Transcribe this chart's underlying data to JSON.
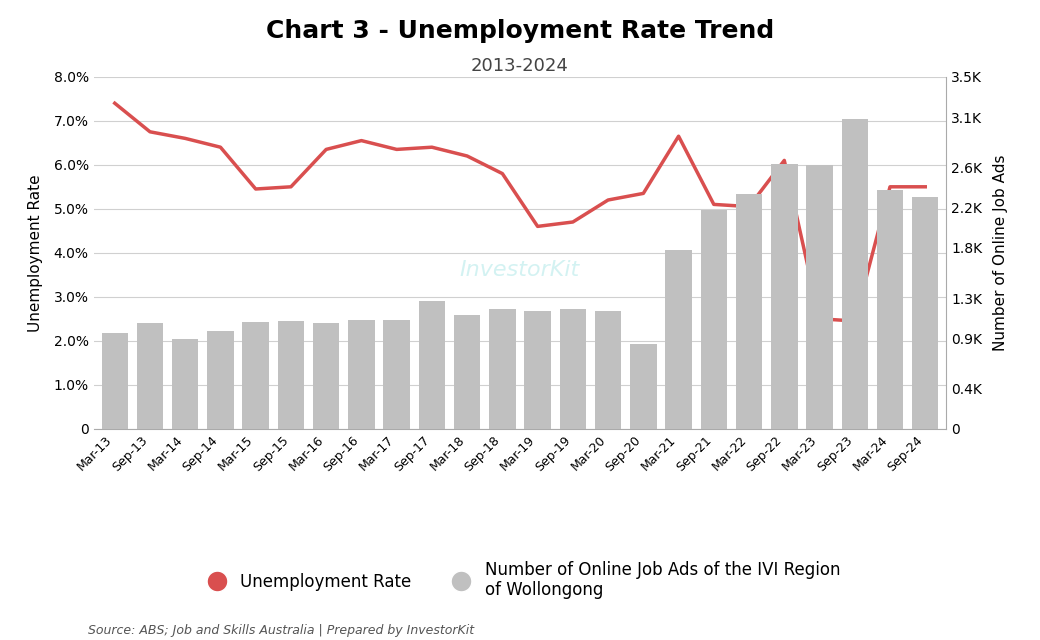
{
  "title": "Chart 3 - Unemployment Rate Trend",
  "subtitle": "2013-2024",
  "source_text": "Source: ABS; Job and Skills Australia | Prepared by InvestorKit",
  "ylabel_left": "Unemployment Rate",
  "ylabel_right": "Number of Online Job Ads",
  "watermark": "InvestorKit",
  "x_labels": [
    "Mar-13",
    "Sep-13",
    "Mar-14",
    "Sep-14",
    "Mar-15",
    "Sep-15",
    "Mar-16",
    "Sep-16",
    "Mar-17",
    "Sep-17",
    "Mar-18",
    "Sep-18",
    "Mar-19",
    "Sep-19",
    "Mar-20",
    "Sep-20",
    "Mar-21",
    "Sep-21",
    "Mar-22",
    "Sep-22",
    "Mar-23",
    "Sep-23",
    "Mar-24",
    "Sep-24"
  ],
  "unemployment_rate": [
    7.4,
    6.75,
    6.6,
    6.4,
    5.45,
    5.5,
    6.35,
    6.55,
    6.35,
    6.4,
    6.2,
    5.8,
    4.6,
    4.7,
    5.2,
    5.35,
    6.65,
    5.1,
    5.05,
    6.1,
    2.5,
    2.45,
    5.5,
    5.5
  ],
  "job_ads": [
    950,
    1050,
    890,
    970,
    1060,
    1070,
    1050,
    1080,
    1080,
    1270,
    1130,
    1190,
    1170,
    1190,
    1175,
    840,
    1780,
    2180,
    2330,
    2630,
    2620,
    3080,
    2370,
    2300
  ],
  "unemployment_color": "#d94f4f",
  "bar_color": "#c0c0c0",
  "background_color": "#ffffff",
  "grid_color": "#d0d0d0",
  "ylim_left": [
    0,
    8.0
  ],
  "ylim_right": [
    0,
    3500
  ],
  "yticks_left": [
    0,
    1.0,
    2.0,
    3.0,
    4.0,
    5.0,
    6.0,
    7.0,
    8.0
  ],
  "ytick_labels_left": [
    "0",
    "1.0%",
    "2.0%",
    "3.0%",
    "4.0%",
    "5.0%",
    "6.0%",
    "7.0%",
    "8.0%"
  ],
  "yticks_right": [
    0,
    400,
    900,
    1300,
    1800,
    2200,
    2600,
    3100,
    3500
  ],
  "ytick_labels_right": [
    "0",
    "0.4K",
    "0.9K",
    "1.3K",
    "1.8K",
    "2.2K",
    "2.6K",
    "3.1K",
    "3.5K"
  ],
  "legend_label_unemployment": "Unemployment Rate",
  "legend_label_jobads": "Number of Online Job Ads of the IVI Region\nof Wollongong",
  "title_fontsize": 18,
  "subtitle_fontsize": 13,
  "axis_label_fontsize": 11,
  "tick_fontsize": 10,
  "legend_fontsize": 12
}
